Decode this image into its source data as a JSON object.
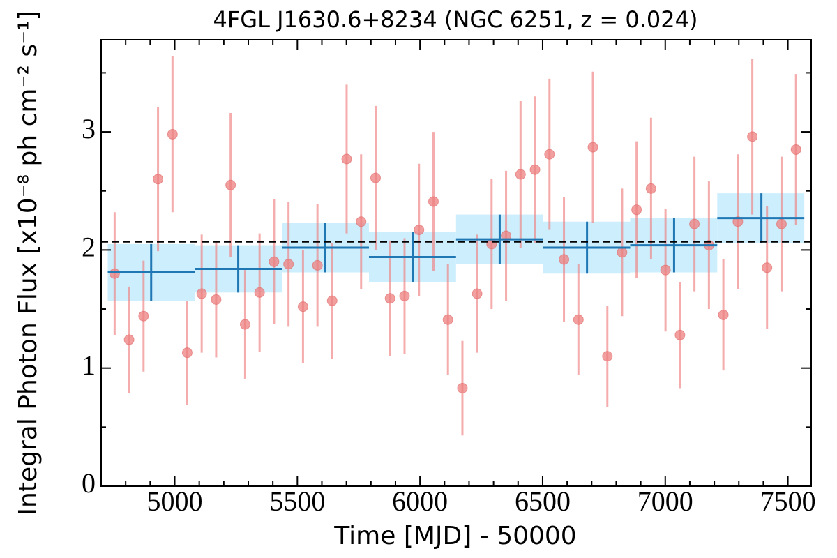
{
  "chart_data": {
    "type": "scatter",
    "title": "4FGL J1630.6+8234 (NGC 6251, z = 0.024)",
    "xlabel": "Time [MJD] - 50000",
    "ylabel": "Integral Photon Flux [x10⁻⁸ ph cm⁻² s⁻¹]",
    "xlim": [
      4700,
      7595
    ],
    "ylim": [
      0,
      3.78
    ],
    "xticks": [
      5000,
      5500,
      6000,
      6500,
      7000,
      7500
    ],
    "yticks": [
      0,
      1,
      2,
      3
    ],
    "xticks_minor": [
      4700,
      4800,
      4900,
      5100,
      5200,
      5300,
      5400,
      5600,
      5700,
      5800,
      5900,
      6100,
      6200,
      6300,
      6400,
      6600,
      6700,
      6800,
      6900,
      7100,
      7200,
      7300,
      7400
    ],
    "yticks_minor": [
      0.5,
      1.5,
      2.5,
      3.5
    ],
    "reference_line": 2.07,
    "points": {
      "color": "#ee7f7f",
      "x": [
        4755,
        4814,
        4873,
        4932,
        4991,
        5051,
        5110,
        5169,
        5228,
        5287,
        5346,
        5405,
        5464,
        5523,
        5582,
        5642,
        5701,
        5760,
        5819,
        5878,
        5937,
        5996,
        6055,
        6114,
        6173,
        6233,
        6292,
        6351,
        6410,
        6469,
        6528,
        6587,
        6646,
        6705,
        6764,
        6824,
        6883,
        6942,
        7001,
        7060,
        7119,
        7178,
        7237,
        7296,
        7355,
        7415,
        7474,
        7533
      ],
      "y": [
        1.8,
        1.24,
        1.44,
        2.6,
        2.98,
        1.13,
        1.63,
        1.58,
        2.55,
        1.37,
        1.64,
        1.9,
        1.88,
        1.52,
        1.87,
        1.57,
        2.77,
        2.24,
        2.61,
        1.59,
        1.61,
        2.17,
        2.41,
        1.41,
        0.83,
        1.63,
        2.05,
        2.12,
        2.64,
        2.68,
        2.81,
        1.92,
        1.41,
        2.87,
        1.1,
        1.98,
        2.34,
        2.52,
        1.83,
        1.28,
        2.22,
        2.04,
        1.45,
        2.24,
        2.96,
        1.85,
        2.22,
        2.85
      ],
      "yerr": [
        0.52,
        0.45,
        0.47,
        0.61,
        0.66,
        0.44,
        0.5,
        0.49,
        0.61,
        0.46,
        0.5,
        0.53,
        0.53,
        0.48,
        0.52,
        0.49,
        0.63,
        0.57,
        0.61,
        0.49,
        0.49,
        0.56,
        0.59,
        0.47,
        0.4,
        0.5,
        0.55,
        0.55,
        0.62,
        0.62,
        0.64,
        0.53,
        0.47,
        0.64,
        0.43,
        0.54,
        0.58,
        0.6,
        0.52,
        0.45,
        0.57,
        0.54,
        0.47,
        0.57,
        0.66,
        0.52,
        0.57,
        0.64
      ]
    },
    "bins": {
      "color": "#1f77b4",
      "box_color": "#cdeefd",
      "x": [
        4904,
        5259,
        5614,
        5970,
        6325,
        6681,
        7036,
        7392
      ],
      "x_low": [
        4727,
        5082,
        5437,
        5792,
        6147,
        6502,
        6857,
        7212
      ],
      "x_high": [
        5082,
        5437,
        5792,
        6147,
        6502,
        6857,
        7212,
        7567
      ],
      "y": [
        1.81,
        1.84,
        2.02,
        1.94,
        2.09,
        2.02,
        2.04,
        2.27
      ],
      "yerr": [
        0.24,
        0.2,
        0.21,
        0.21,
        0.21,
        0.22,
        0.23,
        0.21
      ]
    }
  }
}
